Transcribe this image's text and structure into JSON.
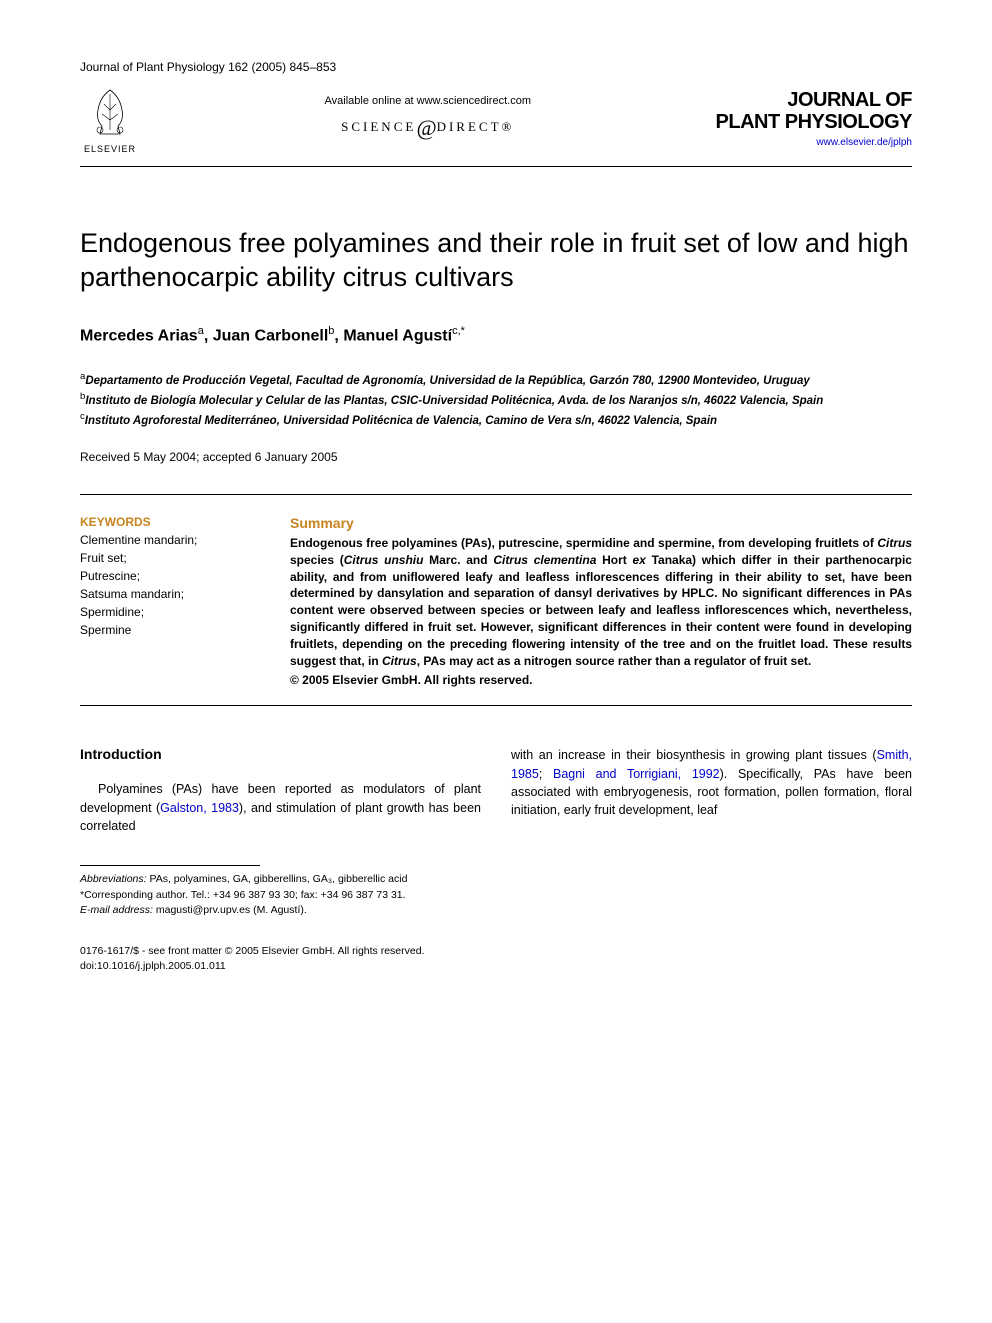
{
  "header": {
    "citation": "Journal of Plant Physiology 162 (2005) 845–853",
    "elsevier_label": "ELSEVIER",
    "available_text": "Available online at www.sciencedirect.com",
    "sd_prefix": "SCIENCE",
    "sd_suffix": "DIRECT®",
    "journal_name_line1": "JOURNAL OF",
    "journal_name_line2": "PLANT PHYSIOLOGY",
    "journal_link": "www.elsevier.de/jplph"
  },
  "article": {
    "title": "Endogenous free polyamines and their role in fruit set of low and high parthenocarpic ability citrus cultivars",
    "authors_html": "Mercedes Arias<sup>a</sup>, Juan Carbonell<sup>b</sup>, Manuel Agustí<sup>c,*</sup>",
    "affiliations": {
      "a": "Departamento de Producción Vegetal, Facultad de Agronomía, Universidad de la República, Garzón 780, 12900 Montevideo, Uruguay",
      "b": "Instituto de Biología Molecular y Celular de las Plantas, CSIC-Universidad Politécnica, Avda. de los Naranjos s/n, 46022 Valencia, Spain",
      "c": "Instituto Agroforestal Mediterráneo, Universidad Politécnica de Valencia, Camino de Vera s/n, 46022 Valencia, Spain"
    },
    "dates": "Received 5 May 2004; accepted 6 January 2005"
  },
  "keywords": {
    "heading": "KEYWORDS",
    "items": [
      "Clementine mandarin;",
      "Fruit set;",
      "Putrescine;",
      "Satsuma mandarin;",
      "Spermidine;",
      "Spermine"
    ]
  },
  "summary": {
    "heading": "Summary",
    "text_parts": [
      "Endogenous free polyamines (PAs), putrescine, spermidine and spermine, from developing fruitlets of ",
      "Citrus",
      " species (",
      "Citrus unshiu",
      " Marc. and ",
      "Citrus clementina",
      " Hort ",
      "ex",
      " Tanaka) which differ in their parthenocarpic ability, and from uniflowered leafy and leafless inflorescences differing in their ability to set, have been determined by dansylation and separation of dansyl derivatives by HPLC. No significant differences in PAs content were observed between species or between leafy and leafless inflorescences which, nevertheless, significantly differed in fruit set. However, significant differences in their content were found in developing fruitlets, depending on the preceding flowering intensity of the tree and on the fruitlet load. These results suggest that, in ",
      "Citrus",
      ", PAs may act as a nitrogen source rather than a regulator of fruit set."
    ],
    "copyright": "© 2005 Elsevier GmbH. All rights reserved."
  },
  "intro": {
    "heading": "Introduction",
    "col1_parts": [
      "Polyamines (PAs) have been reported as modulators of plant development (",
      "Galston, 1983",
      "), and stimulation of plant growth has been correlated"
    ],
    "col2_parts": [
      "with an increase in their biosynthesis in growing plant tissues (",
      "Smith, 1985",
      "; ",
      "Bagni and Torrigiani, 1992",
      "). Specifically, PAs have been associated with embryogenesis, root formation, pollen formation, floral initiation, early fruit development, leaf"
    ]
  },
  "footnotes": {
    "abbrev_label": "Abbreviations:",
    "abbrev_text": " PAs, polyamines, GA, gibberellins, GA₃, gibberellic acid",
    "corresp": "*Corresponding author. Tel.: +34 96 387 93 30; fax: +34 96 387 73 31.",
    "email_label": "E-mail address:",
    "email": " magusti@prv.upv.es (M. Agustí)."
  },
  "bottom": {
    "issn": "0176-1617/$ - see front matter © 2005 Elsevier GmbH. All rights reserved.",
    "doi": "doi:10.1016/j.jplph.2005.01.011"
  },
  "colors": {
    "heading_gold": "#c8841e",
    "link_blue": "#0000cc",
    "text": "#000000",
    "background": "#ffffff"
  }
}
